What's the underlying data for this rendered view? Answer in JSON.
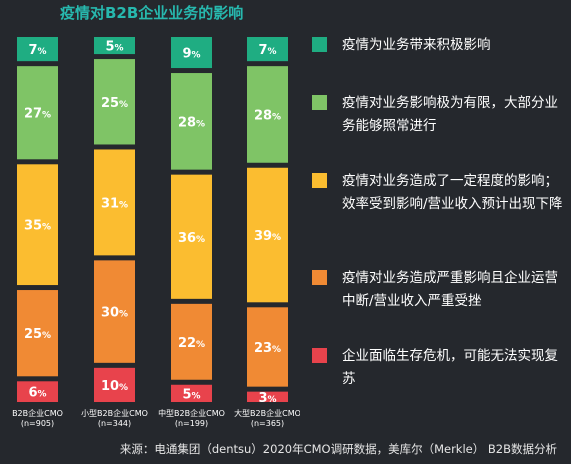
{
  "chart_data": {
    "type": "bar",
    "stacked": true,
    "title": "疫情对B2B企业业务的影响",
    "categories": [
      [
        "B2B企业CMO",
        "(n=905)"
      ],
      [
        "小型B2B企业CMO",
        "(n=344)"
      ],
      [
        "中型B2B企业CMO",
        "(n=199)"
      ],
      [
        "大型B2B企业CMO",
        "(n=365)"
      ]
    ],
    "series": [
      {
        "name": "企业面临生存危机，可能无法实现复苏",
        "color": "#e8434c",
        "values": [
          6,
          10,
          5,
          3
        ],
        "labels": [
          "6%",
          "10%",
          "5%",
          "3%"
        ]
      },
      {
        "name": "疫情对业务造成严重影响且企业运营中断/营业收入严重受挫",
        "color": "#f08a34",
        "values": [
          25,
          30,
          22,
          23
        ],
        "labels": [
          "25%",
          "30%",
          "22%",
          "23%"
        ]
      },
      {
        "name": "疫情对业务造成了一定程度的影响；效率受到影响/营业收入预计出现下降",
        "color": "#fbbd30",
        "values": [
          35,
          31,
          36,
          39
        ],
        "labels": [
          "35%",
          "31%",
          "36%",
          "39%"
        ]
      },
      {
        "name": "疫情对业务影响极为有限，大部分业务能够照常进行",
        "color": "#7fc466",
        "values": [
          27,
          25,
          28,
          28
        ],
        "labels": [
          "27%",
          "25%",
          "28%",
          "28%"
        ]
      },
      {
        "name": "疫情为业务带来积极影响",
        "color": "#1fad82",
        "values": [
          7,
          5,
          9,
          7
        ],
        "labels": [
          "7%",
          "5%",
          "9%",
          "7%"
        ]
      }
    ],
    "legend_order": [
      4,
      3,
      2,
      1,
      0
    ],
    "legend_position": "right",
    "ylim": [
      0,
      100
    ]
  },
  "source": "来源：电通集团（dentsu）2020年CMO调研数据，美库尔（Merkle） B2B数据分析"
}
